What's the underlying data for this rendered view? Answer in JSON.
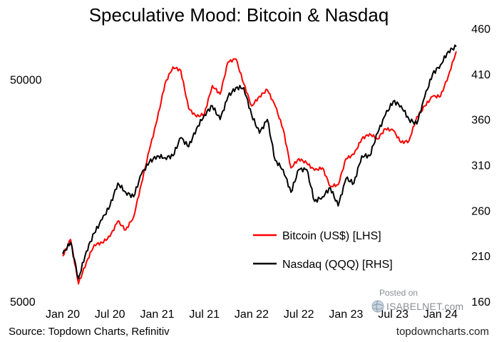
{
  "chart_data": {
    "type": "line",
    "title": "Speculative Mood: Bitcoin & Nasdaq",
    "x_ticks": [
      "Jan 20",
      "Jul 20",
      "Jan 21",
      "Jul 21",
      "Jan 22",
      "Jul 22",
      "Jan 23",
      "Jul 23",
      "Jan 24"
    ],
    "x_range": [
      "2020-01",
      "2024-03"
    ],
    "left_axis": {
      "scale": "log",
      "ticks": [
        "5000",
        "50000"
      ],
      "range": [
        5000,
        85000
      ]
    },
    "right_axis": {
      "scale": "linear",
      "ticks": [
        "160",
        "210",
        "260",
        "310",
        "360",
        "410",
        "460"
      ],
      "range": [
        160,
        460
      ]
    },
    "grid": false,
    "legend_position": "right-middle",
    "series": [
      {
        "name": "Bitcoin (US$) [LHS]",
        "axis": "left",
        "color": "#ff0000",
        "x": [
          "2020-01",
          "2020-02",
          "2020-03",
          "2020-04",
          "2020-05",
          "2020-06",
          "2020-07",
          "2020-08",
          "2020-09",
          "2020-10",
          "2020-11",
          "2020-12",
          "2021-01",
          "2021-02",
          "2021-03",
          "2021-04",
          "2021-05",
          "2021-06",
          "2021-07",
          "2021-08",
          "2021-09",
          "2021-10",
          "2021-11",
          "2021-12",
          "2022-01",
          "2022-02",
          "2022-03",
          "2022-04",
          "2022-05",
          "2022-06",
          "2022-07",
          "2022-08",
          "2022-09",
          "2022-10",
          "2022-11",
          "2022-12",
          "2023-01",
          "2023-02",
          "2023-03",
          "2023-04",
          "2023-05",
          "2023-06",
          "2023-07",
          "2023-08",
          "2023-09",
          "2023-10",
          "2023-11",
          "2023-12",
          "2024-01",
          "2024-02",
          "2024-03"
        ],
        "values": [
          8000,
          9500,
          6000,
          7500,
          9000,
          9200,
          9800,
          11500,
          10500,
          12000,
          17000,
          24000,
          33000,
          48000,
          57000,
          55000,
          37000,
          34000,
          35000,
          47000,
          43000,
          60000,
          62000,
          48000,
          38000,
          42000,
          45000,
          38000,
          30000,
          20000,
          22000,
          21000,
          19500,
          20000,
          16500,
          16800,
          22000,
          23000,
          27000,
          28500,
          27000,
          30000,
          29500,
          26000,
          26500,
          34000,
          38000,
          42000,
          42000,
          52000,
          67000
        ]
      },
      {
        "name": "Nasdaq (QQQ) [RHS]",
        "axis": "right",
        "color": "#000000",
        "x": [
          "2020-01",
          "2020-02",
          "2020-03",
          "2020-04",
          "2020-05",
          "2020-06",
          "2020-07",
          "2020-08",
          "2020-09",
          "2020-10",
          "2020-11",
          "2020-12",
          "2021-01",
          "2021-02",
          "2021-03",
          "2021-04",
          "2021-05",
          "2021-06",
          "2021-07",
          "2021-08",
          "2021-09",
          "2021-10",
          "2021-11",
          "2021-12",
          "2022-01",
          "2022-02",
          "2022-03",
          "2022-04",
          "2022-05",
          "2022-06",
          "2022-07",
          "2022-08",
          "2022-09",
          "2022-10",
          "2022-11",
          "2022-12",
          "2023-01",
          "2023-02",
          "2023-03",
          "2023-04",
          "2023-05",
          "2023-06",
          "2023-07",
          "2023-08",
          "2023-09",
          "2023-10",
          "2023-11",
          "2023-12",
          "2024-01",
          "2024-02",
          "2024-03"
        ],
        "values": [
          212,
          225,
          185,
          215,
          235,
          250,
          265,
          290,
          280,
          275,
          300,
          313,
          320,
          318,
          320,
          340,
          330,
          350,
          365,
          375,
          360,
          385,
          395,
          395,
          365,
          345,
          360,
          315,
          305,
          280,
          305,
          305,
          270,
          275,
          285,
          265,
          295,
          290,
          320,
          320,
          345,
          365,
          380,
          375,
          360,
          355,
          385,
          410,
          420,
          435,
          440
        ]
      }
    ]
  }
}
